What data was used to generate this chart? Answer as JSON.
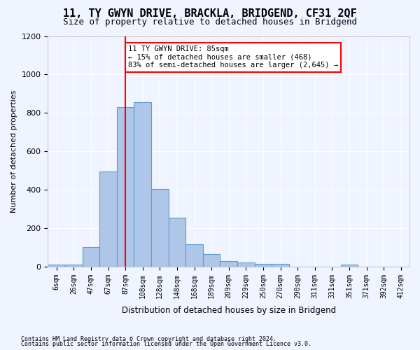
{
  "title": "11, TY GWYN DRIVE, BRACKLA, BRIDGEND, CF31 2QF",
  "subtitle": "Size of property relative to detached houses in Bridgend",
  "xlabel": "Distribution of detached houses by size in Bridgend",
  "ylabel": "Number of detached properties",
  "bin_labels": [
    "6sqm",
    "26sqm",
    "47sqm",
    "67sqm",
    "87sqm",
    "108sqm",
    "128sqm",
    "148sqm",
    "168sqm",
    "189sqm",
    "209sqm",
    "229sqm",
    "250sqm",
    "270sqm",
    "290sqm",
    "311sqm",
    "331sqm",
    "351sqm",
    "371sqm",
    "392sqm",
    "412sqm"
  ],
  "bar_values": [
    10,
    12,
    100,
    495,
    830,
    855,
    405,
    255,
    115,
    65,
    30,
    22,
    13,
    13,
    0,
    0,
    0,
    12,
    0,
    0,
    0
  ],
  "bar_color": "#aec6e8",
  "bar_edge_color": "#5b9bd5",
  "property_line_x": 4,
  "annotation_text": "11 TY GWYN DRIVE: 85sqm\n← 15% of detached houses are smaller (468)\n83% of semi-detached houses are larger (2,645) →",
  "annotation_box_color": "white",
  "annotation_box_edge_color": "red",
  "vline_color": "red",
  "ylim": [
    0,
    1200
  ],
  "yticks": [
    0,
    200,
    400,
    600,
    800,
    1000,
    1200
  ],
  "footnote1": "Contains HM Land Registry data © Crown copyright and database right 2024.",
  "footnote2": "Contains public sector information licensed under the Open Government Licence v3.0.",
  "bg_color": "#f0f4ff",
  "grid_color": "white",
  "title_fontsize": 11,
  "subtitle_fontsize": 9
}
